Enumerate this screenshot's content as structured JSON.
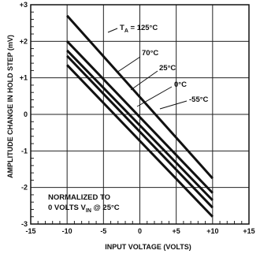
{
  "chart_data": {
    "type": "line",
    "xlabel": "INPUT VOLTAGE (VOLTS)",
    "ylabel": "AMPLITUDE CHANGE IN HOLD STEP (mV)",
    "xlim": [
      -15,
      15
    ],
    "ylim": [
      -3,
      3
    ],
    "grid": true,
    "x_ticks": [
      "-15",
      "-10",
      "-5",
      "0",
      "+5",
      "+10",
      "+15"
    ],
    "y_ticks": [
      "-3",
      "-2",
      "-1",
      "0",
      "+1",
      "+2",
      "+3"
    ],
    "series": [
      {
        "name": "T_A = 125°C",
        "x": [
          -10,
          10
        ],
        "y": [
          2.7,
          -1.75
        ]
      },
      {
        "name": "70°C",
        "x": [
          -10,
          10
        ],
        "y": [
          2.0,
          -2.15
        ]
      },
      {
        "name": "25°C",
        "x": [
          -10,
          10
        ],
        "y": [
          1.75,
          -2.35
        ]
      },
      {
        "name": "0°C",
        "x": [
          -10,
          10
        ],
        "y": [
          1.6,
          -2.55
        ]
      },
      {
        "name": "-55°C",
        "x": [
          -10,
          10
        ],
        "y": [
          1.35,
          -2.8
        ]
      }
    ],
    "annotations": {
      "ta_prefix": "T",
      "ta_sub": "A",
      "ta_value": " = 125°C",
      "t70": "70°C",
      "t25": "25°C",
      "t0": "0°C",
      "tm55": "-55°C",
      "norm_line1": "NORMALIZED TO",
      "norm_line2_a": "0 VOLTS V",
      "norm_line2_sub": "IN",
      "norm_line2_b": " @ 25°C"
    }
  }
}
